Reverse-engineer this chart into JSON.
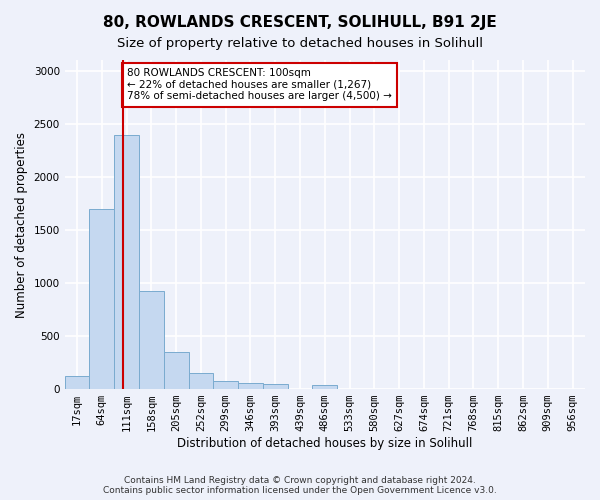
{
  "title": "80, ROWLANDS CRESCENT, SOLIHULL, B91 2JE",
  "subtitle": "Size of property relative to detached houses in Solihull",
  "xlabel": "Distribution of detached houses by size in Solihull",
  "ylabel": "Number of detached properties",
  "footer_line1": "Contains HM Land Registry data © Crown copyright and database right 2024.",
  "footer_line2": "Contains public sector information licensed under the Open Government Licence v3.0.",
  "bins": [
    "17sqm",
    "64sqm",
    "111sqm",
    "158sqm",
    "205sqm",
    "252sqm",
    "299sqm",
    "346sqm",
    "393sqm",
    "439sqm",
    "486sqm",
    "533sqm",
    "580sqm",
    "627sqm",
    "674sqm",
    "721sqm",
    "768sqm",
    "815sqm",
    "862sqm",
    "909sqm",
    "956sqm"
  ],
  "bar_values": [
    120,
    1700,
    2390,
    920,
    350,
    155,
    80,
    60,
    45,
    0,
    40,
    0,
    0,
    0,
    0,
    0,
    0,
    0,
    0,
    0,
    0
  ],
  "bar_color": "#c5d8f0",
  "bar_edge_color": "#7aabcf",
  "ylim": [
    0,
    3100
  ],
  "yticks": [
    0,
    500,
    1000,
    1500,
    2000,
    2500,
    3000
  ],
  "property_line_bin_index": 1.85,
  "annotation_text": "80 ROWLANDS CRESCENT: 100sqm\n← 22% of detached houses are smaller (1,267)\n78% of semi-detached houses are larger (4,500) →",
  "annotation_box_color": "#ffffff",
  "annotation_border_color": "#cc0000",
  "red_line_color": "#cc0000",
  "background_color": "#eef1fa",
  "grid_color": "#ffffff",
  "title_fontsize": 11,
  "subtitle_fontsize": 9.5,
  "axis_label_fontsize": 8.5,
  "tick_fontsize": 7.5,
  "footer_fontsize": 6.5
}
